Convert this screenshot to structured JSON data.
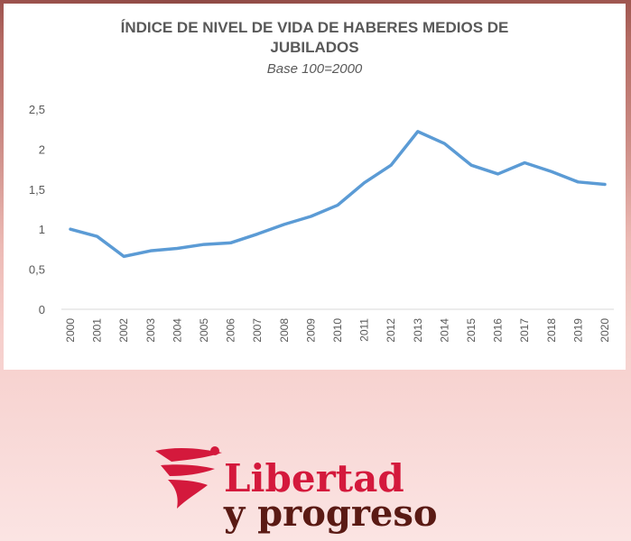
{
  "chart_data": {
    "type": "line",
    "title": "ÍNDICE DE NIVEL DE VIDA DE HABERES MEDIOS DE JUBILADOS",
    "title_line1": "ÍNDICE DE NIVEL DE VIDA DE HABERES MEDIOS DE",
    "title_line2": "JUBILADOS",
    "subtitle": "Base 100=2000",
    "xlabel": "",
    "ylabel": "",
    "ylim": [
      0,
      2.5
    ],
    "yticks": [
      "0",
      "0,5",
      "1",
      "1,5",
      "2",
      "2,5"
    ],
    "ytick_values": [
      0,
      0.5,
      1,
      1.5,
      2,
      2.5
    ],
    "grid": false,
    "legend": "none",
    "x": [
      "2000",
      "2001",
      "2002",
      "2003",
      "2004",
      "2005",
      "2006",
      "2007",
      "2008",
      "2009",
      "2010",
      "2011",
      "2012",
      "2013",
      "2014",
      "2015",
      "2016",
      "2017",
      "2018",
      "2019",
      "2020"
    ],
    "series": [
      {
        "values": [
          1.0,
          0.91,
          0.66,
          0.73,
          0.76,
          0.81,
          0.83,
          0.94,
          1.06,
          1.16,
          1.3,
          1.58,
          1.8,
          2.22,
          2.07,
          1.8,
          1.69,
          1.83,
          1.72,
          1.59,
          1.56
        ],
        "color": "#5b9bd5"
      }
    ]
  },
  "logo": {
    "line1": "Libertad",
    "line2": "y progreso",
    "red": "#d4193c",
    "brown": "#5a1a14"
  }
}
